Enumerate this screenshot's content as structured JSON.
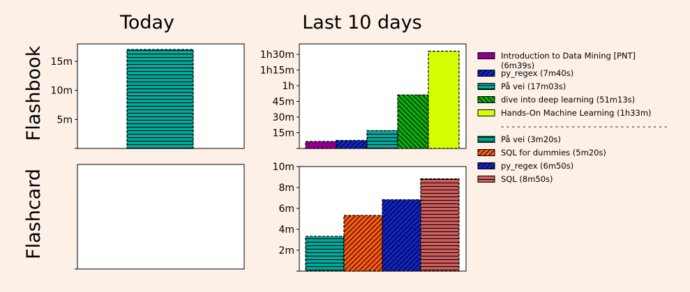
{
  "column_titles": {
    "today": "Today",
    "last10": "Last 10 days"
  },
  "row_titles": {
    "flashbook": "Flashbook",
    "flashcard": "Flashcard"
  },
  "colors": {
    "background": "#fdf0e6",
    "teal": "#00a99b",
    "purple": "#8b008b",
    "blue": "#0f24c6",
    "green": "#0cae0c",
    "lime": "#d4ff00",
    "orange": "#ff5a10",
    "salmon": "#cd5c5c"
  },
  "chart_data": [
    {
      "id": "today_flashbook",
      "type": "bar",
      "unit": "minutes",
      "ylim": [
        0,
        18
      ],
      "yticks": [
        {
          "v": 5,
          "label": "5m"
        },
        {
          "v": 10,
          "label": "10m"
        },
        {
          "v": 15,
          "label": "15m"
        }
      ],
      "series": [
        {
          "values": [
            17.05
          ],
          "color": "#00a99b",
          "hatch": "horizontal"
        }
      ]
    },
    {
      "id": "today_flashcard",
      "type": "bar",
      "unit": "minutes",
      "series": []
    },
    {
      "id": "last10_flashbook",
      "type": "bar",
      "unit": "minutes",
      "ylim": [
        0,
        100
      ],
      "yticks": [
        {
          "v": 15,
          "label": "15m"
        },
        {
          "v": 30,
          "label": "30m"
        },
        {
          "v": 45,
          "label": "45m"
        },
        {
          "v": 60,
          "label": "1h"
        },
        {
          "v": 75,
          "label": "1h15m"
        },
        {
          "v": 90,
          "label": "1h30m"
        }
      ],
      "series": [
        {
          "name": "Introduction to Data Mining [PNT] (6m39s)",
          "values": [
            6.65
          ],
          "color": "#8b008b",
          "hatch": "none"
        },
        {
          "name": "py_regex (7m40s)",
          "values": [
            7.67
          ],
          "color": "#0f24c6",
          "hatch": "diagonal"
        },
        {
          "name": "På vei (17m03s)",
          "values": [
            17.05
          ],
          "color": "#00a99b",
          "hatch": "horizontal"
        },
        {
          "name": "dive into deep learning (51m13s)",
          "values": [
            51.22
          ],
          "color": "#0cae0c",
          "hatch": "backdiagonal"
        },
        {
          "name": "Hands-On Machine Learning (1h33m)",
          "values": [
            93
          ],
          "color": "#d4ff00",
          "hatch": "none"
        }
      ]
    },
    {
      "id": "last10_flashcard",
      "type": "bar",
      "unit": "minutes",
      "ylim": [
        0,
        10
      ],
      "yticks": [
        {
          "v": 2,
          "label": "2m"
        },
        {
          "v": 4,
          "label": "4m"
        },
        {
          "v": 6,
          "label": "6m"
        },
        {
          "v": 8,
          "label": "8m"
        },
        {
          "v": 10,
          "label": "10m"
        }
      ],
      "series": [
        {
          "name": "På vei (3m20s)",
          "values": [
            3.33
          ],
          "color": "#00a99b",
          "hatch": "horizontal"
        },
        {
          "name": "SQL for dummies (5m20s)",
          "values": [
            5.33
          ],
          "color": "#ff5a10",
          "hatch": "diagonal"
        },
        {
          "name": "py_regex (6m50s)",
          "values": [
            6.83
          ],
          "color": "#0f24c6",
          "hatch": "diagonal"
        },
        {
          "name": "SQL (8m50s)",
          "values": [
            8.83
          ],
          "color": "#cd5c5c",
          "hatch": "horizontal"
        }
      ]
    }
  ],
  "legend": {
    "separator": "- - - - - - - - - - - - - - - - - - - - - - - - - - - - - - -"
  }
}
